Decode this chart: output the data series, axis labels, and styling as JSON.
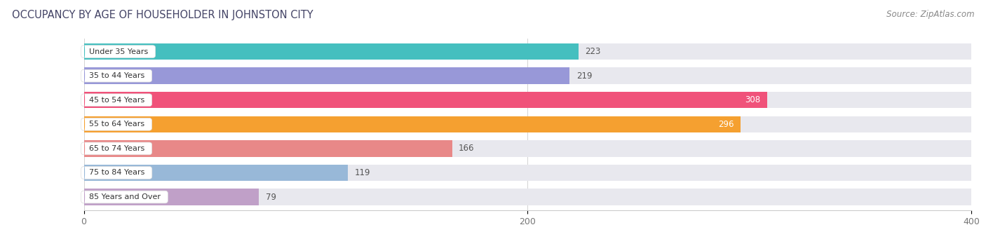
{
  "title": "OCCUPANCY BY AGE OF HOUSEHOLDER IN JOHNSTON CITY",
  "source": "Source: ZipAtlas.com",
  "categories": [
    "Under 35 Years",
    "35 to 44 Years",
    "45 to 54 Years",
    "55 to 64 Years",
    "65 to 74 Years",
    "75 to 84 Years",
    "85 Years and Over"
  ],
  "values": [
    223,
    219,
    308,
    296,
    166,
    119,
    79
  ],
  "bar_colors": [
    "#45bfbf",
    "#9898d8",
    "#f0527a",
    "#f5a030",
    "#e88888",
    "#98b8d8",
    "#c0a0c8"
  ],
  "bar_bg_color": "#e8e8ee",
  "xlim": [
    0,
    400
  ],
  "xticks": [
    0,
    200,
    400
  ],
  "background_color": "#ffffff",
  "title_fontsize": 10.5,
  "source_fontsize": 8.5,
  "inside_label_indices": [
    2,
    3
  ]
}
